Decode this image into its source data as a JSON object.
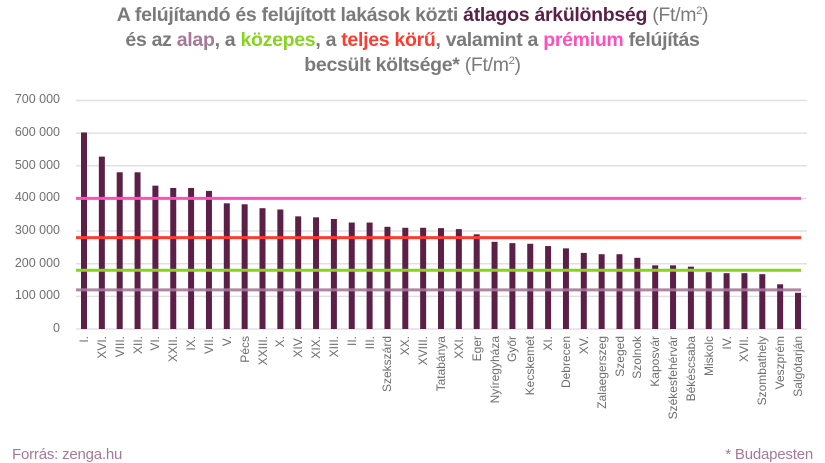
{
  "title": {
    "line1": {
      "prefix": "A felújítandó és felújított lakások közti ",
      "highlight": "átlagos árkülönbség",
      "suffix": " (Ft/m",
      "sup": "2",
      "close": ")"
    },
    "line2": {
      "t1": "és az ",
      "alap": "alap",
      "t2": ", a ",
      "kozepes": "közepes",
      "t3": ", a ",
      "teljes": "teljes körű",
      "t4": ", valamint a ",
      "premium": "prémium",
      "t5": " felújítás"
    },
    "line3": {
      "t1": "becsült költsége*",
      "t2": " (Ft/m",
      "sup": "2",
      "close": ")"
    }
  },
  "colors": {
    "bar": "#5c1f47",
    "highlight_avg": "#5c1f47",
    "alap": "#a6789a",
    "kozepes": "#86d41e",
    "teljes": "#ff3b30",
    "premium": "#ff4fbf",
    "title_gray": "#7a7a7a",
    "grid": "#e0e0e0"
  },
  "footer": {
    "source": "Forrás: zenga.hu",
    "note": "* Budapesten"
  },
  "chart_data": {
    "type": "bar",
    "title": "A felújítandó és felújított lakások közti átlagos árkülönbség (Ft/m2) és az alap, a közepes, a teljes körű, valamint a prémium felújítás becsült költsége* (Ft/m2)",
    "xlabel": "",
    "ylabel": "Ft/m2",
    "ylim": [
      0,
      700000
    ],
    "yticks": [
      0,
      100000,
      200000,
      300000,
      400000,
      500000,
      600000,
      700000
    ],
    "ytick_labels": [
      "0",
      "100 000",
      "200 000",
      "300 000",
      "400 000",
      "500 000",
      "600 000",
      "700 000"
    ],
    "grid": true,
    "legend": "none (colors explained in title)",
    "categories": [
      "I.",
      "XVI.",
      "VIII.",
      "XII.",
      "VI.",
      "XXII.",
      "IX.",
      "VII.",
      "V.",
      "Pécs",
      "XXIII.",
      "X.",
      "XIV.",
      "XIX.",
      "XIII.",
      "II.",
      "III.",
      "Szekszárd",
      "XX.",
      "XVIII.",
      "Tatabánya",
      "XXI.",
      "Eger",
      "Nyíregyháza",
      "Győr",
      "Kecskemét",
      "XI.",
      "Debrecen",
      "XV.",
      "Zalaegerszeg",
      "Szeged",
      "Szolnok",
      "Kaposvár",
      "Székesfehérvár",
      "Békéscsaba",
      "Miskolc",
      "IV.",
      "XVII.",
      "Szombathely",
      "Veszprém",
      "Salgótarján"
    ],
    "series": [
      {
        "name": "átlagos árkülönbség",
        "type": "bar",
        "color": "#5c1f47",
        "values": [
          602000,
          528000,
          480000,
          480000,
          439000,
          432000,
          432000,
          423000,
          385000,
          382000,
          370000,
          366000,
          345000,
          342000,
          337000,
          326000,
          326000,
          313000,
          310000,
          310000,
          309000,
          306000,
          290000,
          267000,
          263000,
          261000,
          254000,
          247000,
          233000,
          229000,
          229000,
          218000,
          195000,
          195000,
          191000,
          174000,
          171000,
          171000,
          168000,
          137000,
          111000
        ]
      },
      {
        "name": "alap",
        "type": "hline",
        "color": "#a6789a",
        "value": 120000
      },
      {
        "name": "közepes",
        "type": "hline",
        "color": "#86d41e",
        "value": 180000
      },
      {
        "name": "teljes körű",
        "type": "hline",
        "color": "#ff3b30",
        "value": 280000
      },
      {
        "name": "prémium",
        "type": "hline",
        "color": "#ff4fbf",
        "value": 400000
      }
    ]
  }
}
